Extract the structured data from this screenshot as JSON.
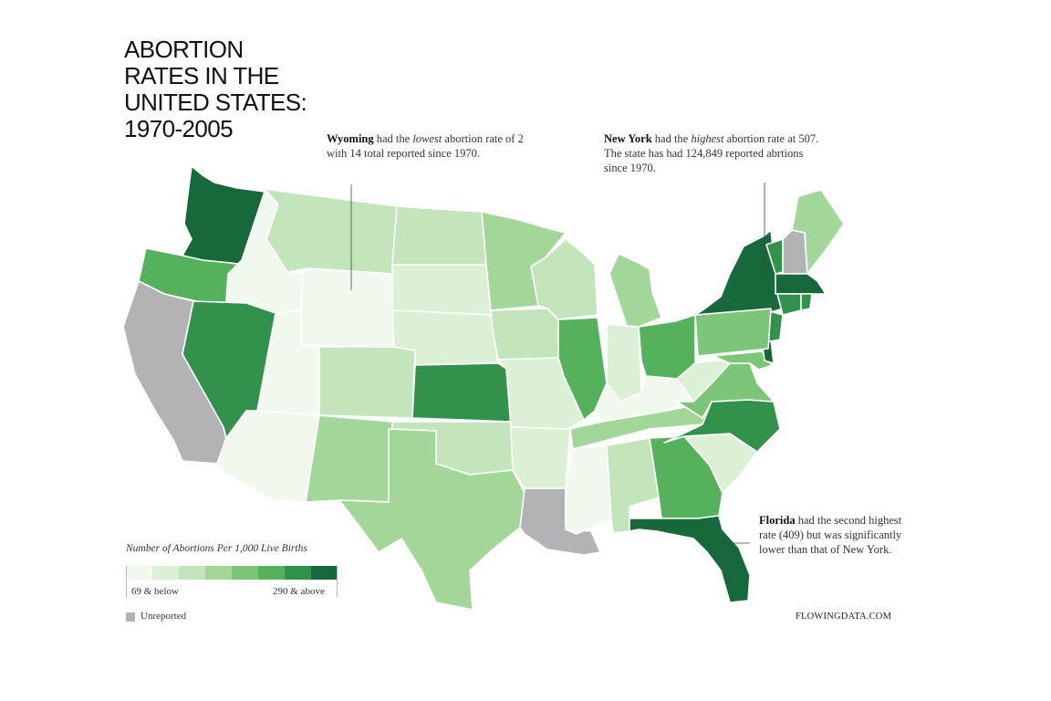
{
  "title_lines": [
    "Abortion",
    "Rates in the",
    "United States:",
    "1970-2005"
  ],
  "annotations": {
    "wyoming": {
      "bold": "Wyoming",
      "t1": " had the ",
      "ital": "lowest",
      "t2": " abortion rate of 2 with 14 total reported since 1970."
    },
    "new_york": {
      "bold": "New York",
      "t1": " had the ",
      "ital": "highest",
      "t2": " abortion rate at 507. The state has had 124,849 reported abrtions since 1970."
    },
    "florida": {
      "bold": "Florida",
      "t1": " had the second highest rate (409) but was significantly lower than that of New York."
    }
  },
  "legend": {
    "title": "Number of Abortions Per 1,000 Live Births",
    "low_label": "69 & below",
    "high_label": "290 & above",
    "colors": [
      "#f1f9ee",
      "#dcf0d6",
      "#c3e5bb",
      "#a3d79a",
      "#7dc578",
      "#56b15c",
      "#32914a",
      "#17683a"
    ],
    "unreported_label": "Unreported",
    "unreported_color": "#b3b3b5"
  },
  "credit": "FLOWINGDATA.COM",
  "map_data": {
    "states": [
      {
        "id": "WA",
        "level": 7
      },
      {
        "id": "OR",
        "level": 5
      },
      {
        "id": "CA",
        "level": -1
      },
      {
        "id": "ID",
        "level": 0
      },
      {
        "id": "NV",
        "level": 6
      },
      {
        "id": "MT",
        "level": 2
      },
      {
        "id": "WY",
        "level": 0
      },
      {
        "id": "UT",
        "level": 0
      },
      {
        "id": "AZ",
        "level": 0
      },
      {
        "id": "CO",
        "level": 2
      },
      {
        "id": "NM",
        "level": 3
      },
      {
        "id": "ND",
        "level": 2
      },
      {
        "id": "SD",
        "level": 1
      },
      {
        "id": "NE",
        "level": 1
      },
      {
        "id": "KS",
        "level": 6
      },
      {
        "id": "OK",
        "level": 2
      },
      {
        "id": "TX",
        "level": 3
      },
      {
        "id": "MN",
        "level": 3
      },
      {
        "id": "IA",
        "level": 2
      },
      {
        "id": "MO",
        "level": 1
      },
      {
        "id": "AR",
        "level": 1
      },
      {
        "id": "LA",
        "level": -1
      },
      {
        "id": "WI",
        "level": 2
      },
      {
        "id": "IL",
        "level": 5
      },
      {
        "id": "MI",
        "level": 3
      },
      {
        "id": "IN",
        "level": 1
      },
      {
        "id": "OH",
        "level": 5
      },
      {
        "id": "KY",
        "level": 0
      },
      {
        "id": "TN",
        "level": 3
      },
      {
        "id": "MS",
        "level": 0
      },
      {
        "id": "AL",
        "level": 2
      },
      {
        "id": "GA",
        "level": 5
      },
      {
        "id": "FL",
        "level": 7
      },
      {
        "id": "SC",
        "level": 1
      },
      {
        "id": "NC",
        "level": 6
      },
      {
        "id": "VA",
        "level": 4
      },
      {
        "id": "WV",
        "level": 1
      },
      {
        "id": "PA",
        "level": 4
      },
      {
        "id": "NY",
        "level": 7
      },
      {
        "id": "VT",
        "level": 6
      },
      {
        "id": "NH",
        "level": -1
      },
      {
        "id": "ME",
        "level": 3
      },
      {
        "id": "MA",
        "level": 7
      },
      {
        "id": "CT",
        "level": 6
      },
      {
        "id": "RI",
        "level": 6
      },
      {
        "id": "NJ",
        "level": 6
      },
      {
        "id": "DE",
        "level": 7
      },
      {
        "id": "MD",
        "level": 4
      }
    ]
  }
}
